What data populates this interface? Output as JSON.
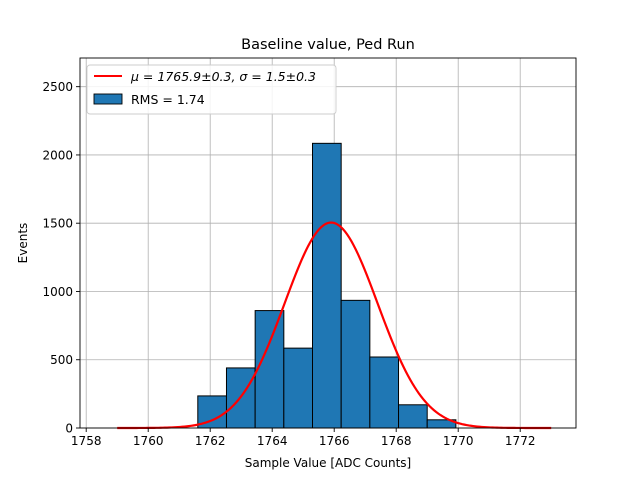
{
  "chart_data": {
    "type": "bar",
    "title": "Baseline value, Ped Run",
    "xlabel": "Sample Value [ADC Counts]",
    "ylabel": "Events",
    "xlim": [
      1757.8,
      1773.8
    ],
    "ylim": [
      0,
      2710
    ],
    "xticks": [
      1758,
      1760,
      1762,
      1764,
      1766,
      1768,
      1770,
      1772
    ],
    "yticks": [
      0,
      500,
      1000,
      1500,
      2000,
      2500
    ],
    "grid": true,
    "legend_position": "upper-left",
    "histogram": {
      "name": "RMS = 1.74",
      "color": "#1f77b4",
      "edgecolor": "#000000",
      "bin_edges": [
        1761.6,
        1762.525,
        1763.45,
        1764.375,
        1765.3,
        1766.225,
        1767.15,
        1768.075,
        1769.0,
        1769.925,
        1770.85
      ],
      "counts": [
        235,
        440,
        860,
        585,
        2085,
        935,
        520,
        170,
        60,
        0
      ]
    },
    "fit": {
      "name_prefix": "μ = 1765.9±0.3, σ = 1.5±0.3",
      "color": "#ff0000",
      "mu": 1765.9,
      "sigma": 1.5,
      "amplitude": 1505,
      "x_range": [
        1759.0,
        1773.0
      ]
    }
  }
}
